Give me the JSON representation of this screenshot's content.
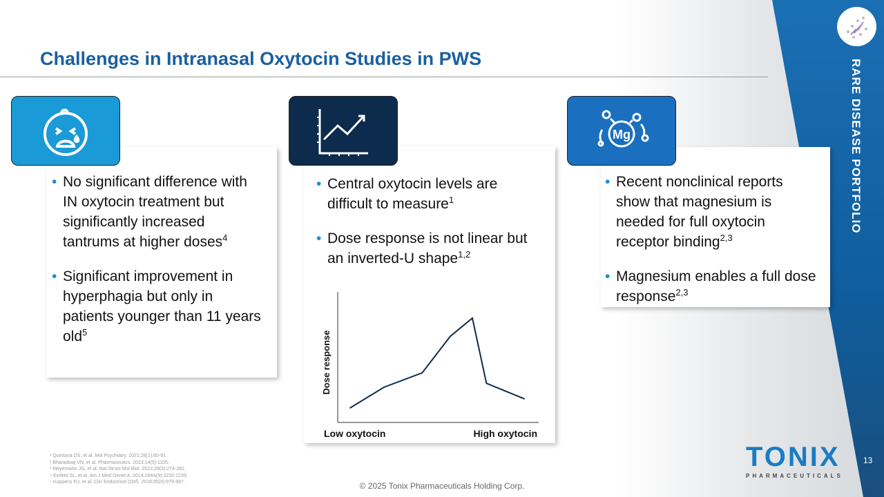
{
  "title": "Challenges in Intranasal Oxytocin Studies in PWS",
  "side_label": "RARE DISEASE PORTFOLIO",
  "cards": [
    {
      "icon": "crying-baby-icon",
      "bullets": [
        {
          "text": "No significant difference with IN oxytocin treatment but significantly increased tantrums at higher doses",
          "sup": "4"
        },
        {
          "text": "Significant improvement in hyperphagia but only in patients younger than 11 years old",
          "sup": "5"
        }
      ]
    },
    {
      "icon": "line-chart-icon",
      "bullets": [
        {
          "text": "Central oxytocin levels are difficult to measure",
          "sup": "1"
        },
        {
          "text": "Dose response is not linear but an inverted-U shape",
          "sup": "1,2"
        }
      ]
    },
    {
      "icon": "magnesium-icon",
      "bullets": [
        {
          "text": "Recent nonclinical reports show that magnesium is needed for full oxytocin receptor binding",
          "sup": "2,3"
        },
        {
          "text": "Magnesium enables a full dose response",
          "sup": "2,3"
        }
      ]
    }
  ],
  "chart_data": {
    "type": "line",
    "xlabel_left": "Low oxytocin",
    "xlabel_right": "High oxytocin",
    "ylabel": "Dose response",
    "x": [
      6,
      23,
      42,
      56,
      67,
      74,
      93
    ],
    "y": [
      11,
      27,
      38,
      66,
      80,
      30,
      18
    ],
    "xlim": [
      0,
      100
    ],
    "ylim": [
      0,
      100
    ]
  },
  "footnotes": [
    "¹ Quintana DS, et al. Mol Psychiatry. 2021;26(1):80-91.",
    "² Bharadwaj VN, et al. Pharmaceutics. 2022;14(5):1105.",
    "³ Meyerowitz JG, et al. Nat Struct Mol Biol. 2022;29(3):274-281.",
    "⁴ Einfeld SL, et al. Am J Med Genet A. 2014;164A(9):2232-2239.",
    "⁵ Kuppens RJ, et al. Clin Endocrinol (Oxf). 2016;85(6):979-987."
  ],
  "copyright": "© 2025 Tonix Pharmaceuticals Holding Corp.",
  "logo": {
    "name": "TONIX",
    "sub": "PHARMACEUTICALS"
  },
  "page_number": "13",
  "colors": {
    "title": "#1a5fa0",
    "accent": "#1a8fd0",
    "navy": "#0d2b4c"
  }
}
